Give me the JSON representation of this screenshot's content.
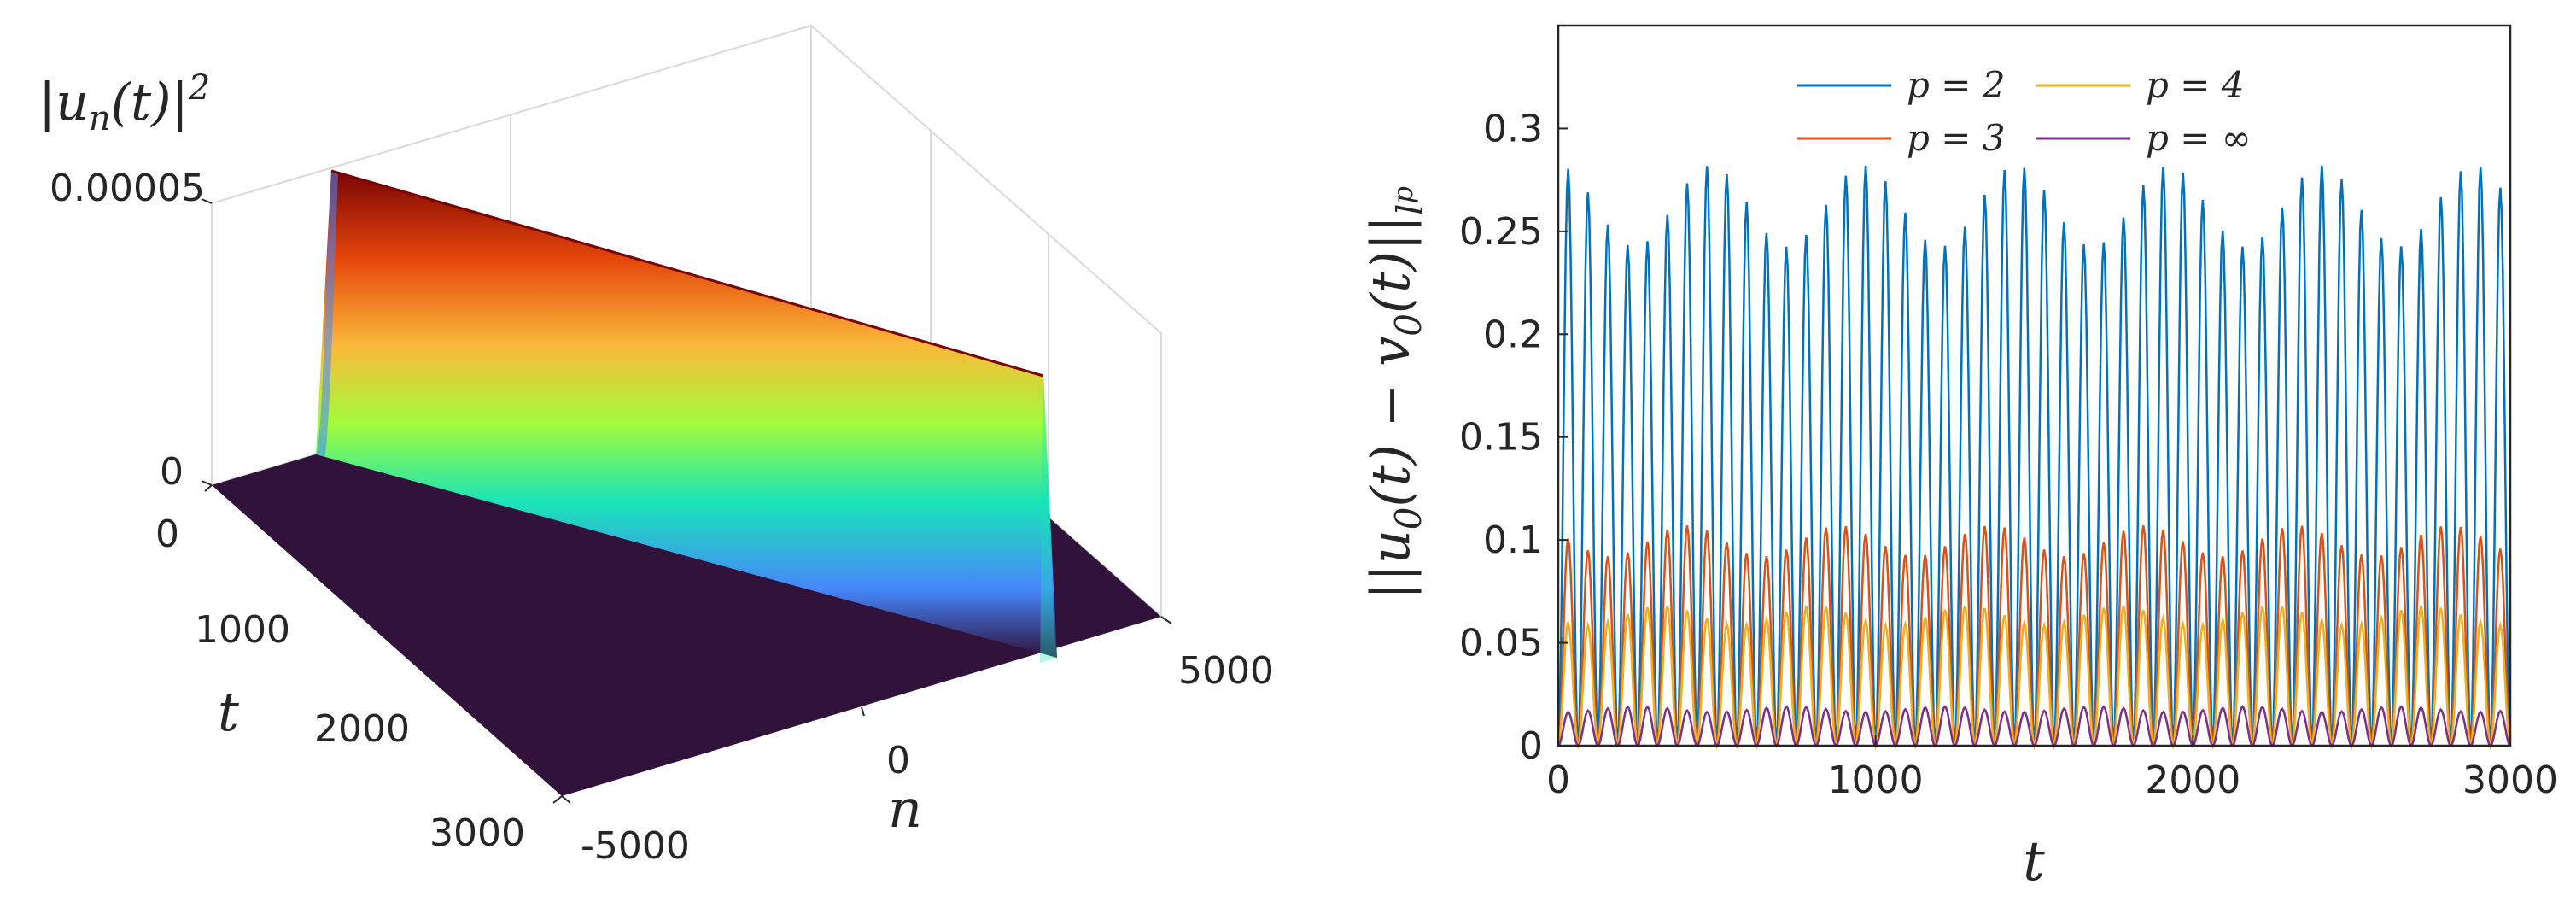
{
  "chart_data": [
    {
      "type": "surface",
      "zlabel": "|u_n(t)|^2",
      "xlabel": "n",
      "ylabel": "t",
      "x_ticks": [
        "-5000",
        "0",
        "5000"
      ],
      "y_ticks": [
        "0",
        "1000",
        "2000",
        "3000"
      ],
      "z_ticks": [
        "0",
        "0.00005"
      ],
      "xlim": [
        -5000,
        5000
      ],
      "ylim": [
        0,
        3000
      ],
      "zlim": [
        0,
        5e-05
      ],
      "peak_n": 0,
      "peak_value": 5e-05,
      "colormap": "turbo",
      "colors": {
        "low": "#30123b",
        "blue": "#4686fb",
        "cyan": "#1ae4b6",
        "green": "#a2fc3c",
        "yellow": "#faba39",
        "orange": "#e4460a",
        "high": "#7a0403"
      }
    },
    {
      "type": "line",
      "xlabel": "t",
      "ylabel": "||u_0(t) − v_0(t)||_{l^p}",
      "xlim": [
        0,
        3000
      ],
      "ylim": [
        0,
        0.35
      ],
      "x_ticks": [
        0,
        1000,
        2000,
        3000
      ],
      "y_ticks": [
        0,
        0.05,
        0.1,
        0.15,
        0.2,
        0.25,
        0.3
      ],
      "x_tick_labels": [
        "0",
        "1000",
        "2000",
        "3000"
      ],
      "y_tick_labels": [
        "0",
        "0.05",
        "0.1",
        "0.15",
        "0.2",
        "0.25",
        "0.3"
      ],
      "oscillation_count": 48,
      "legend_position": "top",
      "series": [
        {
          "name": "p = 2",
          "color": "#0072bd",
          "min": 0.0,
          "max": 0.282
        },
        {
          "name": "p = 3",
          "color": "#d95319",
          "min": 0.0,
          "max": 0.107
        },
        {
          "name": "p = 4",
          "color": "#edb120",
          "min": 0.0,
          "max": 0.068
        },
        {
          "name": "p = ∞",
          "color": "#7e2f8e",
          "min": 0.0,
          "max": 0.019
        }
      ]
    }
  ]
}
